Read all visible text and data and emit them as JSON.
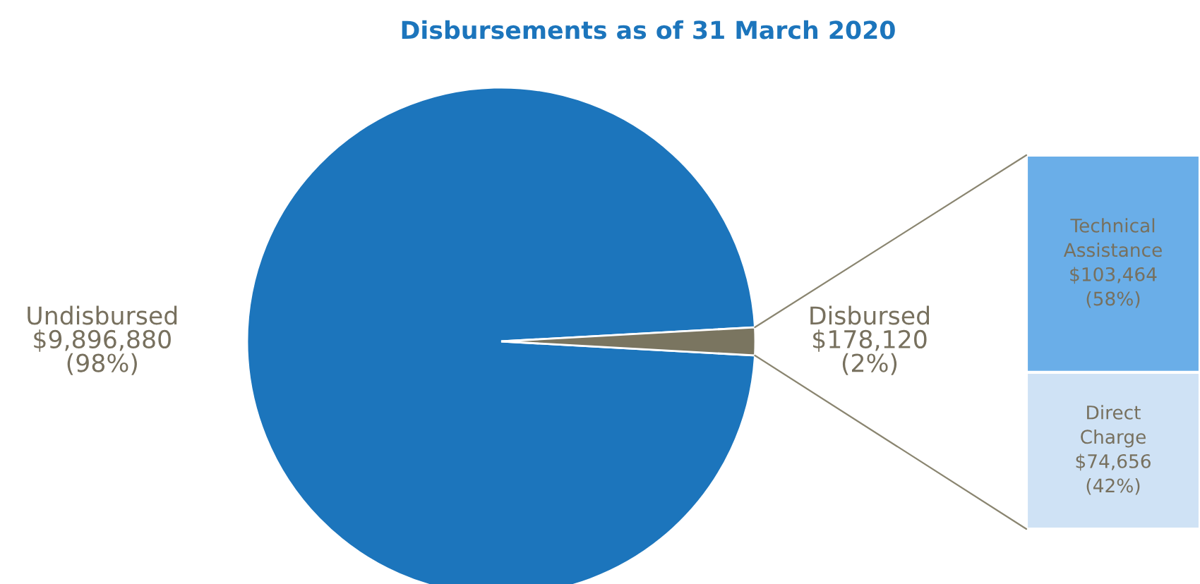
{
  "chart_data": [
    {
      "type": "pie",
      "title": "Disbursements as of 31 March 2020",
      "categories": [
        "Undisbursed",
        "Disbursed"
      ],
      "values": [
        9896880,
        178120
      ],
      "colors": [
        "#1c75bc",
        "#7a7560"
      ],
      "value_labels": [
        "$9,896,880\n(98%)",
        "$178,120\n(2%)"
      ]
    },
    {
      "type": "bar",
      "stacked": true,
      "categories": [
        null
      ],
      "tick_labels": false,
      "legend": false,
      "series": [
        {
          "name": "Direct Charge",
          "color": "#cfe2f5",
          "values": [
            74656
          ],
          "value_labels": [
            "$74,656\n(42%)"
          ]
        },
        {
          "name": "Technical Assistance",
          "color": "#6aaee8",
          "values": [
            103464
          ],
          "value_labels": [
            "$103,464\n(58%)"
          ]
        }
      ]
    }
  ]
}
